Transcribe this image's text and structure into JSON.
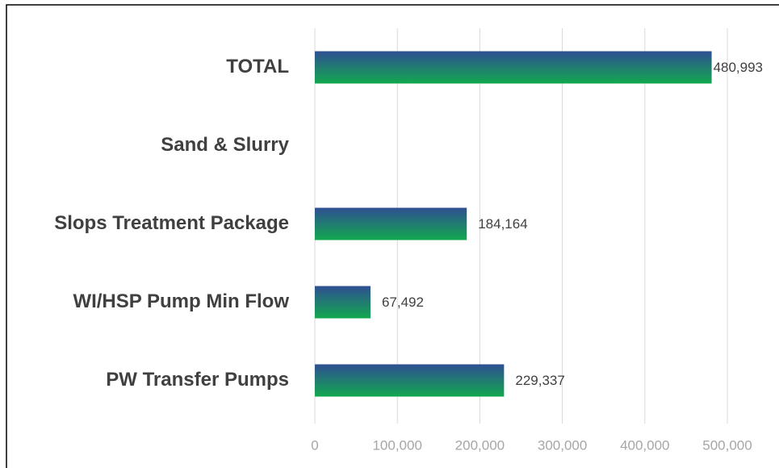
{
  "chart_data": {
    "type": "barh",
    "categories": [
      "TOTAL",
      "Sand & Slurry",
      "Slops Treatment Package",
      "WI/HSP Pump Min Flow",
      "PW Transfer Pumps"
    ],
    "values": [
      480993,
      null,
      184164,
      67492,
      229337
    ],
    "value_labels": [
      "480,993",
      null,
      "184,164",
      "67,492",
      "229,337"
    ],
    "color": {
      "top": "#2f4f93",
      "bottom": "#12a84f"
    },
    "xlim": [
      0,
      500000
    ],
    "xticks": [
      0,
      {
        "value": 100000,
        "label": "100,000"
      },
      {
        "value": 200000,
        "label": "200,000"
      },
      {
        "value": 300000,
        "label": "300,000"
      },
      {
        "value": 400000,
        "label": "400,000"
      },
      {
        "value": 500000,
        "label": "500,000"
      }
    ],
    "grid": true
  }
}
